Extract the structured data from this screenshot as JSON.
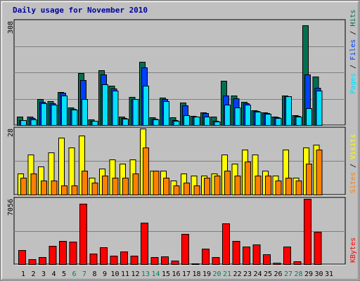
{
  "title": "Daily usage for November 2010",
  "colors": {
    "bg": "#c0c0c0",
    "hits": "#007050",
    "files": "#0040ff",
    "pages": "#00e0ff",
    "visits": "#ffff00",
    "sites": "#ff8000",
    "kbytes": "#ff0000",
    "weekend": "#00805c"
  },
  "legend": {
    "hits": "Hits",
    "files": "Files",
    "pages": "Pages",
    "visits": "Visits",
    "sites": "Sites",
    "kbytes": "KBytes",
    "sep": "/"
  },
  "chart_data": [
    {
      "type": "bar",
      "title": "Daily usage for November 2010",
      "ylabel": "308",
      "ylim": [
        0,
        308
      ],
      "grid": true,
      "categories": [
        "1",
        "2",
        "3",
        "4",
        "5",
        "6",
        "7",
        "8",
        "9",
        "10",
        "11",
        "12",
        "13",
        "14",
        "15",
        "16",
        "17",
        "18",
        "19",
        "20",
        "21",
        "22",
        "23",
        "24",
        "25",
        "26",
        "27",
        "28",
        "29",
        "30",
        "31"
      ],
      "weekend_days": [
        "6",
        "7",
        "13",
        "14",
        "20",
        "21",
        "27",
        "28"
      ],
      "series": [
        {
          "name": "Hits",
          "values": [
            24,
            25,
            78,
            70,
            98,
            52,
            154,
            16,
            162,
            116,
            24,
            84,
            188,
            23,
            82,
            22,
            67,
            28,
            38,
            24,
            132,
            88,
            68,
            43,
            38,
            25,
            87,
            30,
            296,
            144,
            0
          ]
        },
        {
          "name": "Files",
          "values": [
            15,
            20,
            68,
            64,
            95,
            48,
            134,
            12,
            150,
            108,
            20,
            78,
            170,
            18,
            76,
            14,
            58,
            25,
            35,
            12,
            88,
            80,
            64,
            42,
            36,
            22,
            86,
            28,
            150,
            110,
            0
          ]
        },
        {
          "name": "Pages",
          "values": [
            14,
            17,
            64,
            60,
            88,
            46,
            78,
            12,
            120,
            102,
            18,
            78,
            116,
            16,
            70,
            12,
            30,
            24,
            24,
            11,
            60,
            52,
            60,
            39,
            34,
            20,
            86,
            26,
            50,
            103,
            0
          ]
        }
      ]
    },
    {
      "type": "bar",
      "ylabel": "28",
      "ylim": [
        0,
        28
      ],
      "grid": true,
      "categories": [
        "1",
        "2",
        "3",
        "4",
        "5",
        "6",
        "7",
        "8",
        "9",
        "10",
        "11",
        "12",
        "13",
        "14",
        "15",
        "16",
        "17",
        "18",
        "19",
        "20",
        "21",
        "22",
        "23",
        "24",
        "25",
        "26",
        "27",
        "28",
        "29",
        "30",
        "31"
      ],
      "series": [
        {
          "name": "Visits",
          "values": [
            9,
            17,
            12,
            18,
            24,
            20,
            25,
            7,
            11,
            15,
            13,
            15,
            28,
            10,
            10,
            6,
            9,
            8,
            8,
            9,
            17,
            13,
            19,
            17,
            10,
            8,
            19,
            7,
            20,
            21,
            0
          ]
        },
        {
          "name": "Sites",
          "values": [
            7,
            9,
            6,
            6,
            4,
            4,
            10,
            5,
            8,
            7,
            7,
            9,
            20,
            10,
            7,
            4,
            5,
            4,
            7,
            8,
            10,
            8,
            14,
            8,
            8,
            6,
            7,
            6,
            13,
            19,
            0
          ]
        }
      ]
    },
    {
      "type": "bar",
      "ylabel": "7056",
      "ylim": [
        0,
        7056
      ],
      "grid": true,
      "categories": [
        "1",
        "2",
        "3",
        "4",
        "5",
        "6",
        "7",
        "8",
        "9",
        "10",
        "11",
        "12",
        "13",
        "14",
        "15",
        "16",
        "17",
        "18",
        "19",
        "20",
        "21",
        "22",
        "23",
        "24",
        "25",
        "26",
        "27",
        "28",
        "29",
        "30",
        "31"
      ],
      "series": [
        {
          "name": "KBytes",
          "values": [
            1520,
            520,
            790,
            1940,
            2530,
            2390,
            6560,
            1160,
            1790,
            940,
            1330,
            910,
            4440,
            790,
            840,
            350,
            3280,
            70,
            1690,
            780,
            4380,
            2480,
            1880,
            2160,
            1050,
            170,
            1930,
            270,
            7056,
            3490,
            0
          ]
        }
      ]
    }
  ]
}
